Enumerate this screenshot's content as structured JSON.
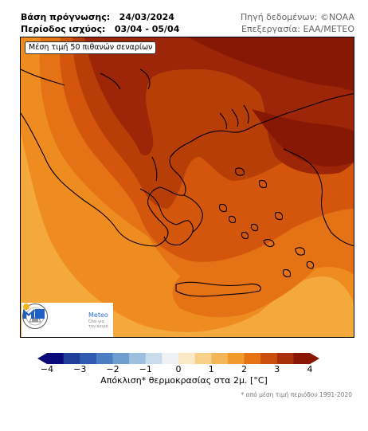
{
  "header": {
    "base_label": "Βάση πρόγνωσης:",
    "base_value": "24/03/2024",
    "period_label": "Περίοδος ισχύος:",
    "period_value": "03/04 - 05/04",
    "source": "Πηγή δεδομένων: ©NOAA",
    "processing": "Επεξεργασία: ΕΑΑ/ΜΕΤΕΟ"
  },
  "map": {
    "label": "Μέση τιμή 50 πιθανών σεναρίων",
    "colors": {
      "band_0_5_1": "#f4a93c",
      "band_1_1_5": "#ef8c1f",
      "band_1_5_2": "#e57316",
      "band_2_2_5": "#d4560c",
      "band_2_5_3": "#b83e08",
      "band_3_3_5": "#9c2607",
      "band_3_5_4": "#881806",
      "coastline": "#000000"
    }
  },
  "logos": {
    "meteo_name": "Meteo",
    "meteo_sub": "Όλα για τον καιρό"
  },
  "colorbar": {
    "ticks": [
      "−4",
      "−3",
      "−2",
      "−1",
      "0",
      "1",
      "2",
      "3",
      "4"
    ],
    "min": -4,
    "max": 4,
    "step": 0.5,
    "colors": [
      "#0a0a7a",
      "#1f3d99",
      "#2f5bb0",
      "#4a7dc2",
      "#6f9dd0",
      "#9ec0e0",
      "#c8dcec",
      "#eef2f4",
      "#fbe9c6",
      "#f8d08a",
      "#f4b558",
      "#f09a2c",
      "#e57316",
      "#cc4e0c",
      "#a93008",
      "#8a1706"
    ],
    "title": "Απόκλιση* θερμοκρασίας στα 2μ. [°C]",
    "footnote": "* από μέση τιμή περιόδου 1991-2020"
  }
}
